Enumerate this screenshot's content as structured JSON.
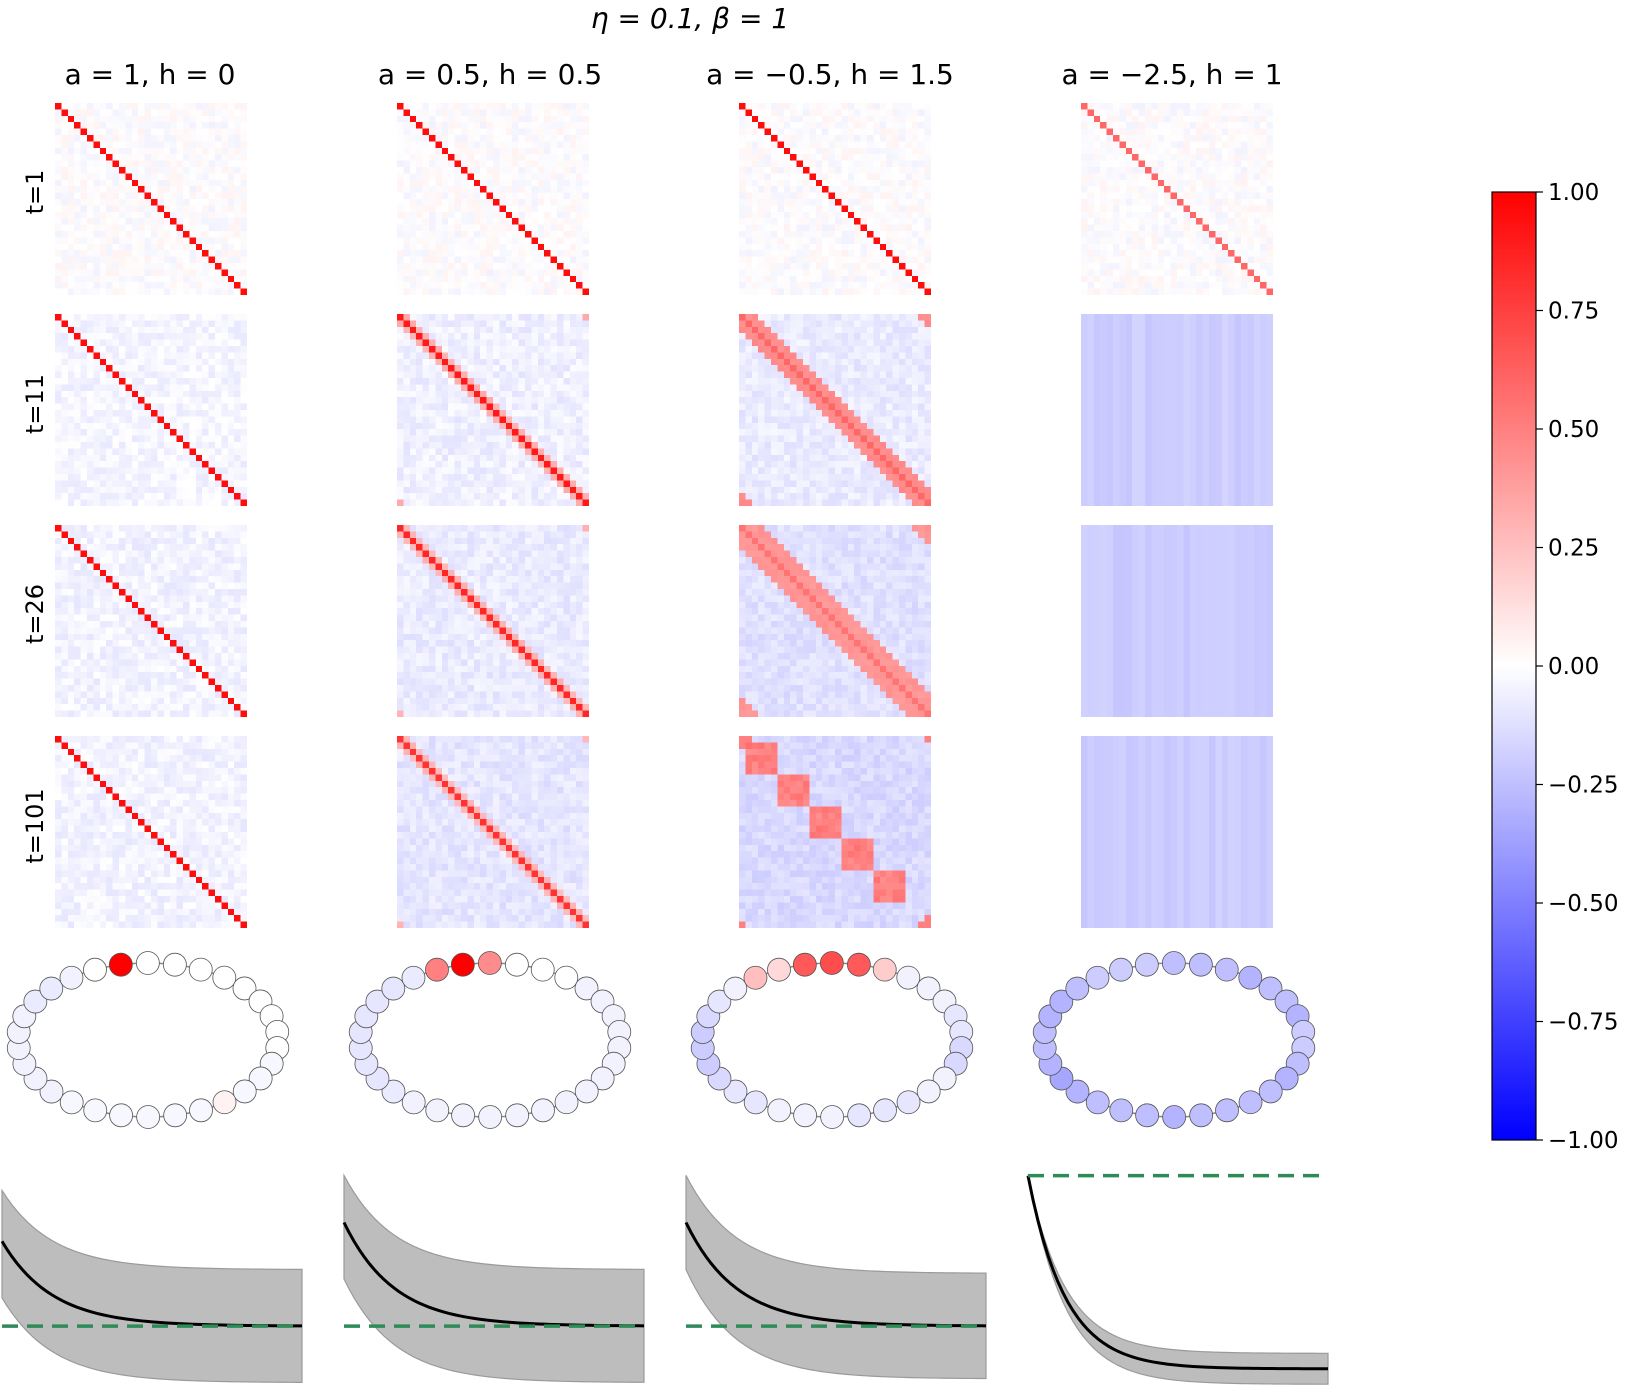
{
  "figure": {
    "suptitle": "η = 0.1, β = 1",
    "row_labels": [
      "t=1",
      "t=11",
      "t=26",
      "t=101"
    ]
  },
  "colors": {
    "colormap": "bwr",
    "positive": "#ff0000",
    "negative": "#0000ff",
    "neutral": "#ffffff",
    "curve": "#000000",
    "band": "#999999",
    "reference_line": "#2e8b57"
  },
  "chart_data": [
    {
      "type": "heatmap",
      "description_label": "a = 1, h = 0",
      "params": {
        "a": 1,
        "h": 0
      },
      "grid_size": 30,
      "snapshots": [
        {
          "t": 1,
          "diagonal": 0.95,
          "band_width": 0,
          "off_diagonal": 0.0
        },
        {
          "t": 11,
          "diagonal": 0.95,
          "band_width": 0,
          "off_diagonal": -0.04
        },
        {
          "t": 26,
          "diagonal": 0.95,
          "band_width": 0,
          "off_diagonal": -0.05
        },
        {
          "t": 101,
          "diagonal": 0.95,
          "band_width": 0,
          "off_diagonal": -0.05
        }
      ],
      "ring_node_values": [
        0.0,
        1.0,
        0.0,
        0.0,
        0.0,
        0.0,
        0.0,
        0.0,
        0.0,
        0.0,
        0.0,
        -0.03,
        -0.03,
        -0.03,
        0.05,
        -0.03,
        -0.03,
        -0.03,
        -0.03,
        -0.03,
        -0.03,
        -0.05,
        -0.05,
        -0.05,
        -0.05,
        -0.05,
        -0.05,
        -0.08,
        -0.08,
        -0.05
      ],
      "curve": {
        "start": 0.45,
        "end": 0.0,
        "band_top_start": 0.72,
        "band_top_end": 0.3,
        "band_bottom_start": 0.15,
        "band_bottom_end": -0.3,
        "reference": 0.0
      }
    },
    {
      "type": "heatmap",
      "description_label": "a = 0.5, h = 0.5",
      "params": {
        "a": 0.5,
        "h": 0.5
      },
      "grid_size": 30,
      "snapshots": [
        {
          "t": 1,
          "diagonal": 0.95,
          "band_width": 0,
          "off_diagonal": 0.0
        },
        {
          "t": 11,
          "diagonal": 0.9,
          "band_width": 1,
          "off_diagonal": -0.06
        },
        {
          "t": 26,
          "diagonal": 0.85,
          "band_width": 1,
          "off_diagonal": -0.08
        },
        {
          "t": 101,
          "diagonal": 0.8,
          "band_width": 1,
          "off_diagonal": -0.1
        }
      ],
      "ring_node_values": [
        0.5,
        1.0,
        0.45,
        0.0,
        0.0,
        0.0,
        -0.05,
        -0.05,
        -0.05,
        -0.05,
        -0.05,
        -0.05,
        -0.05,
        -0.05,
        -0.05,
        -0.05,
        -0.05,
        -0.05,
        -0.05,
        -0.05,
        -0.05,
        -0.08,
        -0.1,
        -0.1,
        -0.1,
        -0.1,
        -0.1,
        -0.1,
        -0.1,
        -0.08
      ],
      "curve": {
        "start": 0.55,
        "end": 0.0,
        "band_top_start": 0.8,
        "band_top_end": 0.3,
        "band_bottom_start": 0.25,
        "band_bottom_end": -0.3,
        "reference": 0.0
      }
    },
    {
      "type": "heatmap",
      "description_label": "a = −0.5, h = 1.5",
      "params": {
        "a": -0.5,
        "h": 1.5
      },
      "grid_size": 30,
      "snapshots": [
        {
          "t": 1,
          "diagonal": 0.95,
          "band_width": 0,
          "off_diagonal": 0.0
        },
        {
          "t": 11,
          "diagonal": 0.6,
          "band_width": 2,
          "off_diagonal": -0.08
        },
        {
          "t": 26,
          "diagonal": 0.55,
          "band_width": 3,
          "off_diagonal": -0.12
        },
        {
          "t": 101,
          "diagonal": 0.5,
          "band_width": 5,
          "off_diagonal": -0.15
        }
      ],
      "ring_node_values": [
        0.15,
        0.65,
        0.7,
        0.65,
        0.2,
        -0.05,
        -0.05,
        -0.05,
        -0.1,
        -0.1,
        -0.15,
        -0.15,
        -0.05,
        -0.05,
        -0.1,
        -0.1,
        -0.1,
        -0.05,
        -0.05,
        -0.05,
        -0.1,
        -0.1,
        -0.15,
        -0.2,
        -0.2,
        -0.2,
        -0.15,
        -0.1,
        -0.05,
        0.25
      ],
      "curve": {
        "start": 0.55,
        "end": 0.0,
        "band_top_start": 0.8,
        "band_top_end": 0.28,
        "band_bottom_start": 0.3,
        "band_bottom_end": -0.28,
        "reference": 0.0
      }
    },
    {
      "type": "heatmap",
      "description_label": "a = −2.5, h = 1",
      "params": {
        "a": -2.5,
        "h": 1
      },
      "grid_size": 30,
      "snapshots": [
        {
          "t": 1,
          "diagonal": 0.6,
          "band_width": 0,
          "off_diagonal": 0.0
        },
        {
          "t": 11,
          "diagonal": -0.2,
          "band_width": 0,
          "off_diagonal": -0.2
        },
        {
          "t": 26,
          "diagonal": -0.2,
          "band_width": 0,
          "off_diagonal": -0.2
        },
        {
          "t": 101,
          "diagonal": -0.2,
          "band_width": 0,
          "off_diagonal": -0.2
        }
      ],
      "ring_node_values": [
        -0.2,
        -0.2,
        -0.25,
        -0.25,
        -0.25,
        -0.3,
        -0.25,
        -0.25,
        -0.3,
        -0.2,
        -0.2,
        -0.25,
        -0.3,
        -0.25,
        -0.25,
        -0.25,
        -0.25,
        -0.3,
        -0.25,
        -0.25,
        -0.25,
        -0.3,
        -0.35,
        -0.3,
        -0.25,
        -0.25,
        -0.3,
        -0.3,
        -0.25,
        -0.2
      ],
      "curve": {
        "start": 1.0,
        "end": 0.0,
        "band_top_start": 1.0,
        "band_top_end": 0.08,
        "band_bottom_start": 1.0,
        "band_bottom_end": -0.08,
        "reference": 1.0
      }
    },
    {
      "type": "colorbar",
      "colormap": "bwr",
      "vmin": -1.0,
      "vmax": 1.0,
      "tick_labels": [
        "1.00",
        "0.75",
        "0.50",
        "0.25",
        "0.00",
        "−0.25",
        "−0.50",
        "−0.75",
        "−1.00"
      ]
    }
  ]
}
